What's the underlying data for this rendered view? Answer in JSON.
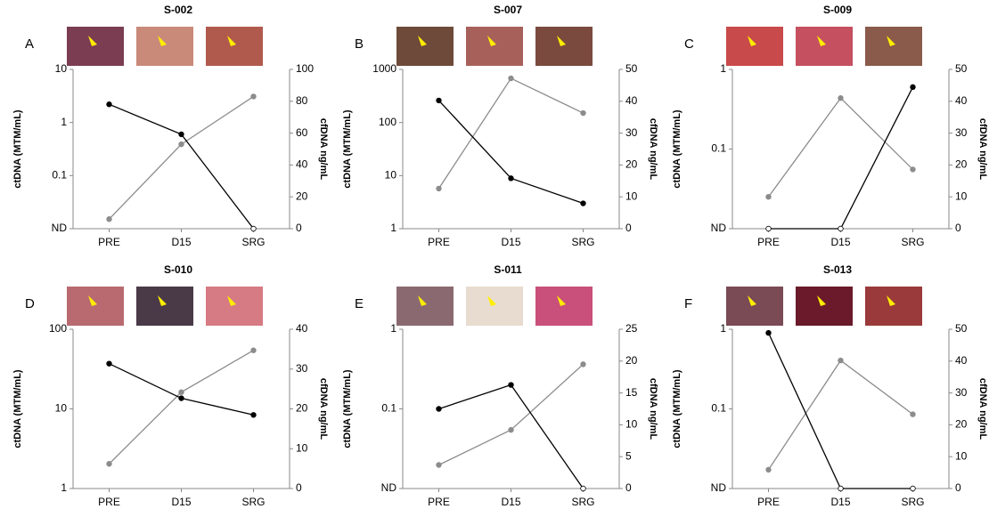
{
  "chart_data": [
    {
      "type": "line",
      "panel": "A",
      "title": "S-002",
      "categories": [
        "PRE",
        "D15",
        "SRG"
      ],
      "y_label": "ctDNA (MTM/mL)",
      "y2_label": "cfDNA ng/mL",
      "ylog": true,
      "ylim": [
        0.01,
        10
      ],
      "yticks": [
        {
          "value": 0.01,
          "label": "ND"
        },
        0.1,
        1,
        10
      ],
      "y2lim": [
        0,
        100
      ],
      "y2ticks": [
        0,
        20,
        40,
        60,
        80,
        100
      ],
      "series": [
        {
          "color": "#000000",
          "values": [
            2.2,
            0.6,
            0.01
          ]
        },
        {
          "color": "#8c8c8c",
          "axis": "y2",
          "values": [
            6,
            53,
            83
          ]
        }
      ]
    },
    {
      "type": "line",
      "panel": "B",
      "title": "S-007",
      "categories": [
        "PRE",
        "D15",
        "SRG"
      ],
      "y_label": "ctDNA (MTM/mL)",
      "y2_label": "cfDNA ng/mL",
      "ylog": true,
      "ylim": [
        1,
        1000
      ],
      "yticks": [
        1,
        10,
        100,
        1000
      ],
      "y2lim": [
        0,
        50
      ],
      "y2ticks": [
        0,
        10,
        20,
        30,
        40,
        50
      ],
      "series": [
        {
          "color": "#000000",
          "values": [
            260,
            8.9,
            3
          ]
        },
        {
          "color": "#8c8c8c",
          "axis": "y2",
          "values": [
            12.6,
            47.2,
            36.3
          ]
        }
      ]
    },
    {
      "type": "line",
      "panel": "C",
      "title": "S-009",
      "categories": [
        "PRE",
        "D15",
        "SRG"
      ],
      "y_label": "ctDNA (MTM/mL)",
      "y2_label": "cfDNA ng/mL",
      "ylog": true,
      "ylim": [
        0.01,
        1
      ],
      "yticks": [
        {
          "value": 0.01,
          "label": "ND"
        },
        0.1,
        1
      ],
      "y2lim": [
        0,
        50
      ],
      "y2ticks": [
        0,
        10,
        20,
        30,
        40,
        50
      ],
      "series": [
        {
          "color": "#000000",
          "values": [
            0.01,
            0.01,
            0.6
          ]
        },
        {
          "color": "#8c8c8c",
          "axis": "y2",
          "values": [
            10,
            41,
            18.6
          ]
        }
      ]
    },
    {
      "type": "line",
      "panel": "D",
      "title": "S-010",
      "categories": [
        "PRE",
        "D15",
        "SRG"
      ],
      "y_label": "ctDNA (MTM/mL)",
      "y2_label": "cfDNA ng/mL",
      "ylog": true,
      "ylim": [
        1,
        100
      ],
      "yticks": [
        1,
        10,
        100
      ],
      "y2lim": [
        0,
        40
      ],
      "y2ticks": [
        0,
        10,
        20,
        30,
        40
      ],
      "series": [
        {
          "color": "#000000",
          "values": [
            37,
            13.6,
            8.4
          ]
        },
        {
          "color": "#8c8c8c",
          "axis": "y2",
          "values": [
            6.2,
            24.2,
            34.7
          ]
        }
      ]
    },
    {
      "type": "line",
      "panel": "E",
      "title": "S-011",
      "categories": [
        "PRE",
        "D15",
        "SRG"
      ],
      "y_label": "ctDNA (MTM/mL)",
      "y2_label": "cfDNA ng/mL",
      "ylog": true,
      "ylim": [
        0.01,
        1
      ],
      "yticks": [
        {
          "value": 0.01,
          "label": "ND"
        },
        0.1,
        1
      ],
      "y2lim": [
        0,
        25
      ],
      "y2ticks": [
        0,
        5,
        10,
        15,
        20,
        25
      ],
      "series": [
        {
          "color": "#000000",
          "values": [
            0.1,
            0.2,
            0.01
          ]
        },
        {
          "color": "#8c8c8c",
          "axis": "y2",
          "values": [
            3.7,
            9.2,
            19.5
          ]
        }
      ]
    },
    {
      "type": "line",
      "panel": "F",
      "title": "S-013",
      "categories": [
        "PRE",
        "D15",
        "SRG"
      ],
      "y_label": "ctDNA (MTM/mL)",
      "y2_label": "cfDNA ng/mL",
      "ylog": true,
      "ylim": [
        0.01,
        1
      ],
      "yticks": [
        {
          "value": 0.01,
          "label": "ND"
        },
        0.1,
        1
      ],
      "y2lim": [
        0,
        50
      ],
      "y2ticks": [
        0,
        10,
        20,
        30,
        40,
        50
      ],
      "series": [
        {
          "color": "#000000",
          "values": [
            0.9,
            0.01,
            0.01
          ]
        },
        {
          "color": "#8c8c8c",
          "axis": "y2",
          "values": [
            5.9,
            40.2,
            23.3
          ]
        }
      ]
    }
  ]
}
